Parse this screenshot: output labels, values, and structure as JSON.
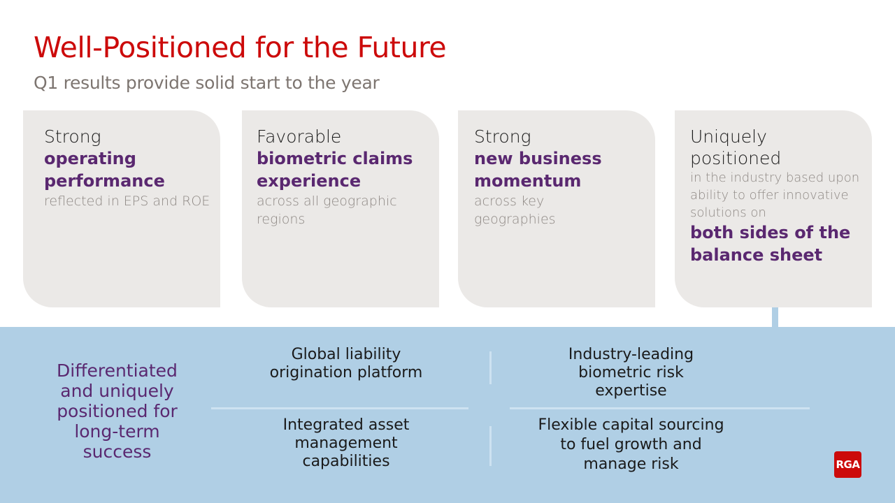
{
  "header": {
    "title": "Well-Positioned for the Future",
    "subtitle": "Q1 results provide solid start to the year"
  },
  "cards": [
    {
      "lead": "Strong",
      "highlight": "operating performance",
      "detail": "reflected in EPS and ROE"
    },
    {
      "lead": "Favorable",
      "highlight": "biometric claims experience",
      "detail": "across all geographic regions"
    },
    {
      "lead": "Strong",
      "highlight": "new business momentum",
      "detail": "across key geographies"
    },
    {
      "lead": "Uniquely positioned",
      "detail": "in the industry based upon ability to offer innovative solutions on",
      "highlight": "both sides of the balance sheet"
    }
  ],
  "band": {
    "statement": "Differentiated and uniquely positioned for long-term success",
    "items": [
      "Global liability origination platform",
      "Industry-leading biometric risk expertise",
      "Integrated asset management capabilities",
      "Flexible capital sourcing to fuel growth and manage risk"
    ]
  },
  "logo": {
    "text": "RGA"
  },
  "colors": {
    "title": "#cc0a0a",
    "accent": "#5a2870",
    "band": "#b0cfe5",
    "card": "#ebe9e7"
  }
}
